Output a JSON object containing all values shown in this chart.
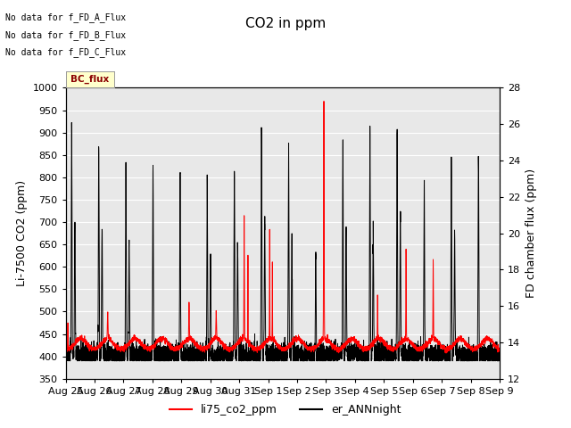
{
  "title": "CO2 in ppm",
  "ylabel_left": "Li-7500 CO2 (ppm)",
  "ylabel_right": "FD chamber flux (ppm)",
  "ylim_left": [
    350,
    1000
  ],
  "ylim_right": [
    12,
    28
  ],
  "yticks_left": [
    350,
    400,
    450,
    500,
    550,
    600,
    650,
    700,
    750,
    800,
    850,
    900,
    950,
    1000
  ],
  "yticks_right": [
    12,
    14,
    16,
    18,
    20,
    22,
    24,
    26,
    28
  ],
  "xlabel_ticks": [
    "Aug 25",
    "Aug 26",
    "Aug 27",
    "Aug 28",
    "Aug 29",
    "Aug 30",
    "Aug 31",
    "Sep 1",
    "Sep 2",
    "Sep 3",
    "Sep 4",
    "Sep 5",
    "Sep 6",
    "Sep 7",
    "Sep 8",
    "Sep 9"
  ],
  "legend_labels": [
    "li75_co2_ppm",
    "er_ANNnight"
  ],
  "legend_colors": [
    "red",
    "black"
  ],
  "text_lines": [
    "No data for f_FD_A_Flux",
    "No data for f_FD_B_Flux",
    "No data for f_FD_C_Flux"
  ],
  "bc_flux_label": "BC_flux",
  "line1_color": "red",
  "line2_color": "black",
  "plot_bg_color": "#e8e8e8",
  "title_fontsize": 11,
  "axis_fontsize": 9,
  "tick_fontsize": 8
}
